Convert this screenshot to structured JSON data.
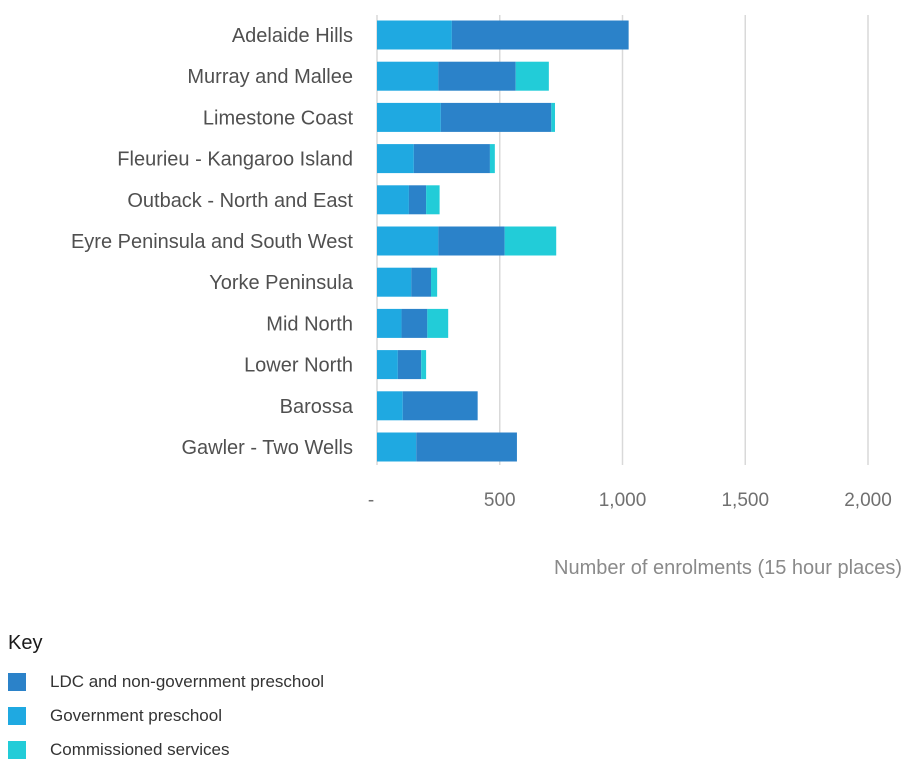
{
  "chart_data": {
    "type": "bar",
    "orientation": "horizontal",
    "stacked": true,
    "categories": [
      "Adelaide Hills",
      "Murray and Mallee",
      "Limestone Coast",
      "Fleurieu - Kangaroo Island",
      "Outback - North and East",
      "Eyre Peninsula and South West",
      "Yorke Peninsula",
      "Mid North",
      "Lower North",
      "Barossa",
      "Gawler - Two Wells"
    ],
    "series": [
      {
        "name": "Government preschool",
        "color": "#1fa9e1",
        "values": [
          305,
          250,
          260,
          150,
          130,
          250,
          140,
          100,
          85,
          105,
          160
        ]
      },
      {
        "name": "LDC and non-government preschool",
        "color": "#2b82c9",
        "values": [
          720,
          315,
          450,
          310,
          70,
          270,
          80,
          105,
          95,
          305,
          410
        ]
      },
      {
        "name": "Commissioned services",
        "color": "#22ccd8",
        "values": [
          0,
          135,
          15,
          20,
          55,
          210,
          25,
          85,
          20,
          0,
          0
        ]
      }
    ],
    "xlim": [
      0,
      2000
    ],
    "xticks": [
      0,
      500,
      1000,
      1500,
      2000
    ],
    "xtick_labels": [
      "-",
      "500",
      "1,000",
      "1,500",
      "2,000"
    ],
    "xlabel": "Number of enrolments (15 hour places)",
    "ylabel": "",
    "grid": "vertical"
  },
  "legend": {
    "title": "Key",
    "items": [
      {
        "label": "LDC and non-government preschool",
        "color": "#2b82c9"
      },
      {
        "label": "Government preschool",
        "color": "#1fa9e1"
      },
      {
        "label": "Commissioned services",
        "color": "#22ccd8"
      }
    ]
  }
}
